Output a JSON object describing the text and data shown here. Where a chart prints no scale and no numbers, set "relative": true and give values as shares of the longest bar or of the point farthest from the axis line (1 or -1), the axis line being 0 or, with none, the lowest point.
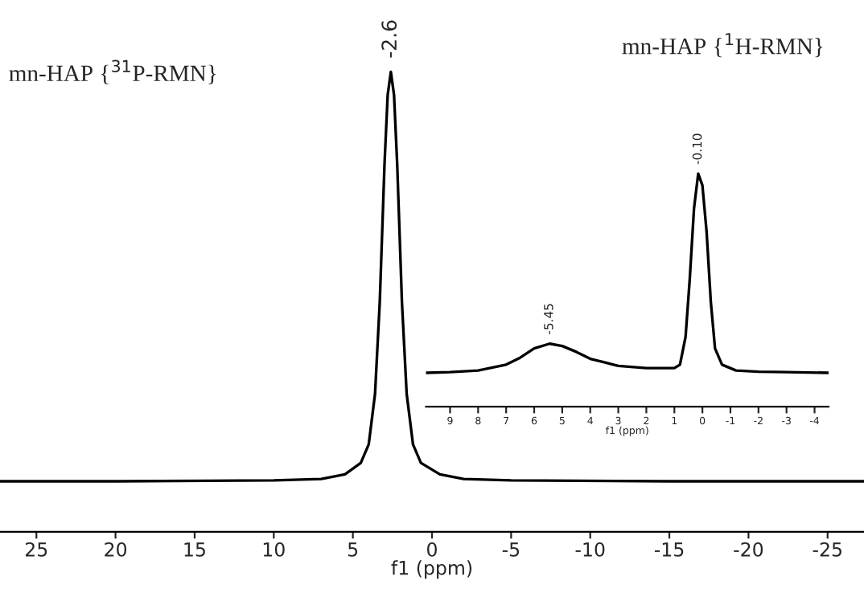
{
  "chart_data": [
    {
      "type": "line",
      "title": "mn-HAP {$^{31}$P-RMN}",
      "xlabel": "f1 (ppm)",
      "relative": true,
      "color": "#000000",
      "x": [
        27.3,
        20,
        10,
        7,
        5.5,
        4.5,
        4.0,
        3.6,
        3.3,
        3.0,
        2.8,
        2.6,
        2.4,
        2.2,
        1.9,
        1.6,
        1.2,
        0.7,
        -0.5,
        -2,
        -5,
        -15,
        -27.3
      ],
      "values": [
        0.11,
        0.11,
        0.112,
        0.115,
        0.125,
        0.15,
        0.19,
        0.3,
        0.5,
        0.8,
        0.95,
        1.0,
        0.95,
        0.8,
        0.5,
        0.3,
        0.19,
        0.15,
        0.125,
        0.115,
        0.112,
        0.11,
        0.11
      ],
      "xlim": [
        27.3,
        -27.3
      ],
      "xticks": [
        25,
        20,
        15,
        10,
        5,
        0,
        -5,
        -10,
        -15,
        -20,
        -25
      ],
      "annotations": [
        {
          "text": "-2.6",
          "x": 2.6,
          "y": 1.0
        }
      ]
    },
    {
      "type": "line",
      "title": "mn-HAP {$^{1}$H-RMN}",
      "xlabel": "f1 (ppm)",
      "relative": true,
      "color": "#000000",
      "x": [
        9.86,
        9,
        8,
        7,
        6.5,
        6,
        5.45,
        5,
        4.5,
        4,
        3.5,
        3,
        2,
        1,
        0.8,
        0.6,
        0.45,
        0.3,
        0.15,
        0.0,
        -0.15,
        -0.3,
        -0.45,
        -0.7,
        -1.2,
        -2,
        -3,
        -4.5
      ],
      "values": [
        0.145,
        0.148,
        0.155,
        0.18,
        0.21,
        0.25,
        0.27,
        0.26,
        0.235,
        0.205,
        0.19,
        0.175,
        0.165,
        0.165,
        0.18,
        0.3,
        0.55,
        0.85,
        1.0,
        0.95,
        0.75,
        0.45,
        0.25,
        0.18,
        0.155,
        0.15,
        0.148,
        0.145
      ],
      "xlim": [
        9.86,
        -4.5
      ],
      "xticks": [
        9,
        8,
        7,
        6,
        5,
        4,
        3,
        2,
        1,
        0,
        -1,
        -2,
        -3,
        -4
      ],
      "annotations": [
        {
          "text": "-5.45",
          "x": 5.45,
          "y": 0.27
        },
        {
          "text": "-0.10",
          "x": 0.15,
          "y": 1.0
        }
      ]
    }
  ]
}
